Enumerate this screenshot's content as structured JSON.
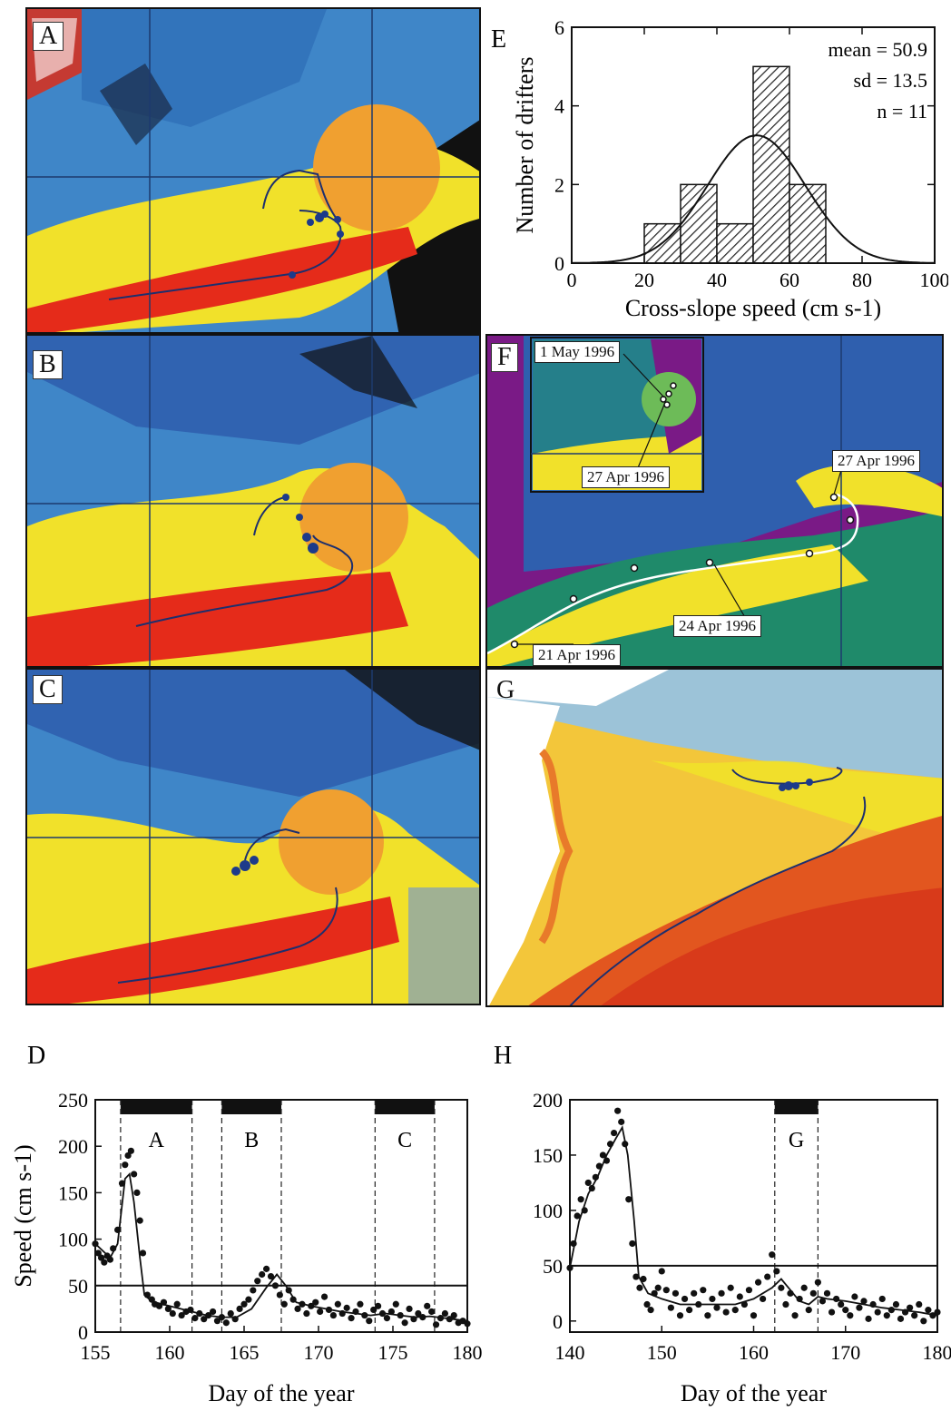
{
  "panels": {
    "A": {
      "label": "A"
    },
    "B": {
      "label": "B"
    },
    "C": {
      "label": "C"
    },
    "F": {
      "label": "F",
      "annotations": [
        "1 May 1996",
        "27 Apr 1996",
        "27 Apr 1996",
        "24 Apr 1996",
        "21 Apr 1996"
      ]
    },
    "G": {
      "label": "G"
    }
  },
  "colors": {
    "cold": "#3f86c8",
    "deep_cold": "#2f5fae",
    "warm": "#f1e12a",
    "hot": "#e52b1a",
    "orange": "#f0a030",
    "land": "#111111",
    "track": "#1d2f6e",
    "violet": "#7a1a86"
  },
  "chart_data": [
    {
      "id": "E",
      "type": "bar",
      "panel_label": "E",
      "xlabel": "Cross-slope speed (cm s-1)",
      "ylabel": "Number of drifters",
      "xlim": [
        0,
        100
      ],
      "ylim": [
        0,
        6
      ],
      "xticks": [
        "0",
        "20",
        "40",
        "60",
        "80",
        "100"
      ],
      "yticks": [
        "0",
        "2",
        "4",
        "6"
      ],
      "bins": [
        [
          20,
          30
        ],
        [
          30,
          40
        ],
        [
          40,
          50
        ],
        [
          50,
          60
        ],
        [
          60,
          70
        ]
      ],
      "values": [
        1,
        2,
        1,
        5,
        2
      ],
      "stats": [
        "mean = 50.9",
        "sd = 13.5",
        "n = 11"
      ],
      "fit": {
        "mean": 50.9,
        "sd": 13.5,
        "n": 11,
        "binwidth": 10
      }
    },
    {
      "id": "D",
      "type": "line",
      "panel_label": "D",
      "xlabel": "Day of the year",
      "ylabel": "Speed (cm s-1)",
      "xlim": [
        155,
        180
      ],
      "ylim": [
        0,
        250
      ],
      "xticks": [
        "155",
        "160",
        "165",
        "170",
        "175",
        "180"
      ],
      "yticks": [
        "0",
        "50",
        "100",
        "150",
        "200",
        "250"
      ],
      "threshold": 50,
      "windows": [
        {
          "label": "A",
          "x": [
            156.7,
            161.5
          ]
        },
        {
          "label": "B",
          "x": [
            163.5,
            167.5
          ]
        },
        {
          "label": "C",
          "x": [
            173.8,
            177.8
          ]
        }
      ],
      "points_x": [
        155,
        155.2,
        155.4,
        155.6,
        155.8,
        156,
        156.2,
        156.5,
        156.8,
        157,
        157.2,
        157.4,
        157.6,
        157.8,
        158,
        158.2,
        158.5,
        158.8,
        159,
        159.3,
        159.6,
        159.9,
        160.2,
        160.5,
        160.8,
        161.1,
        161.4,
        161.7,
        162,
        162.3,
        162.6,
        162.9,
        163.2,
        163.5,
        163.8,
        164.1,
        164.4,
        164.7,
        165,
        165.3,
        165.6,
        165.9,
        166.2,
        166.5,
        166.8,
        167.1,
        167.4,
        167.7,
        168,
        168.3,
        168.6,
        168.9,
        169.2,
        169.5,
        169.8,
        170.1,
        170.4,
        170.7,
        171,
        171.3,
        171.6,
        171.9,
        172.2,
        172.5,
        172.8,
        173.1,
        173.4,
        173.7,
        174,
        174.3,
        174.6,
        174.9,
        175.2,
        175.5,
        175.8,
        176.1,
        176.4,
        176.7,
        177,
        177.3,
        177.6,
        177.9,
        178.2,
        178.5,
        178.8,
        179.1,
        179.4,
        179.7,
        180
      ],
      "points_y": [
        95,
        85,
        80,
        75,
        82,
        78,
        90,
        110,
        160,
        180,
        190,
        195,
        170,
        150,
        120,
        85,
        40,
        35,
        30,
        28,
        32,
        25,
        20,
        30,
        18,
        22,
        24,
        15,
        20,
        14,
        18,
        22,
        12,
        16,
        10,
        20,
        14,
        25,
        30,
        35,
        45,
        55,
        62,
        68,
        60,
        50,
        40,
        30,
        45,
        35,
        25,
        30,
        20,
        28,
        32,
        22,
        38,
        24,
        18,
        30,
        20,
        26,
        15,
        22,
        30,
        18,
        12,
        24,
        28,
        20,
        15,
        22,
        30,
        18,
        10,
        25,
        14,
        20,
        16,
        28,
        22,
        8,
        15,
        20,
        14,
        18,
        10,
        12,
        9
      ],
      "smooth_x": [
        155,
        156,
        156.5,
        157,
        157.3,
        157.6,
        158,
        158.3,
        158.8,
        159.5,
        160.5,
        161.5,
        162.5,
        163.5,
        164.5,
        165.5,
        166.5,
        167.2,
        167.8,
        168.5,
        169.5,
        170.5,
        171.5,
        172.5,
        173.5,
        174.5,
        175.5,
        176.5,
        177.5,
        178.5,
        179.5,
        180
      ],
      "smooth_y": [
        95,
        80,
        95,
        165,
        170,
        140,
        80,
        40,
        33,
        30,
        26,
        22,
        18,
        16,
        16,
        25,
        48,
        62,
        50,
        32,
        28,
        25,
        22,
        20,
        18,
        20,
        18,
        16,
        17,
        15,
        13,
        12
      ]
    },
    {
      "id": "H",
      "type": "line",
      "panel_label": "H",
      "xlabel": "Day of the year",
      "ylabel": "",
      "xlim": [
        140,
        180
      ],
      "ylim": [
        -10,
        200
      ],
      "xticks": [
        "140",
        "150",
        "160",
        "170",
        "180"
      ],
      "yticks": [
        "0",
        "50",
        "100",
        "150",
        "200"
      ],
      "threshold": 50,
      "windows": [
        {
          "label": "G",
          "x": [
            162.3,
            167
          ]
        }
      ],
      "points_x": [
        140,
        140.4,
        140.8,
        141.2,
        141.6,
        142,
        142.4,
        142.8,
        143.2,
        143.6,
        144,
        144.4,
        144.8,
        145.2,
        145.6,
        146,
        146.4,
        146.8,
        147.2,
        147.6,
        148,
        148.4,
        148.8,
        149.2,
        149.6,
        150,
        150.5,
        151,
        151.5,
        152,
        152.5,
        153,
        153.5,
        154,
        154.5,
        155,
        155.5,
        156,
        156.5,
        157,
        157.5,
        158,
        158.5,
        159,
        159.5,
        160,
        160.5,
        161,
        161.5,
        162,
        162.5,
        163,
        163.5,
        164,
        164.5,
        165,
        165.5,
        166,
        166.5,
        167,
        167.5,
        168,
        168.5,
        169,
        169.5,
        170,
        170.5,
        171,
        171.5,
        172,
        172.5,
        173,
        173.5,
        174,
        174.5,
        175,
        175.5,
        176,
        176.5,
        177,
        177.5,
        178,
        178.5,
        179,
        179.5,
        180
      ],
      "points_y": [
        48,
        70,
        95,
        110,
        100,
        125,
        120,
        130,
        140,
        150,
        145,
        160,
        170,
        190,
        180,
        160,
        110,
        70,
        40,
        30,
        38,
        15,
        10,
        25,
        30,
        45,
        28,
        12,
        25,
        5,
        20,
        10,
        25,
        15,
        28,
        5,
        20,
        12,
        25,
        8,
        30,
        10,
        22,
        15,
        28,
        5,
        35,
        20,
        40,
        60,
        45,
        30,
        15,
        25,
        5,
        20,
        30,
        10,
        25,
        35,
        18,
        25,
        8,
        20,
        15,
        10,
        5,
        22,
        12,
        18,
        2,
        15,
        8,
        20,
        5,
        10,
        15,
        2,
        8,
        12,
        5,
        15,
        0,
        10,
        5,
        8
      ],
      "smooth_x": [
        140,
        141,
        142,
        143,
        144,
        145,
        145.7,
        146.3,
        147,
        147.5,
        148.5,
        150,
        152,
        155,
        158,
        160,
        162,
        163,
        164,
        165,
        166,
        167,
        168,
        170,
        172,
        174,
        176,
        178,
        180
      ],
      "smooth_y": [
        48,
        90,
        115,
        130,
        150,
        165,
        175,
        150,
        90,
        40,
        25,
        20,
        15,
        15,
        15,
        20,
        30,
        38,
        28,
        18,
        15,
        22,
        20,
        18,
        15,
        12,
        10,
        8,
        5
      ]
    }
  ]
}
